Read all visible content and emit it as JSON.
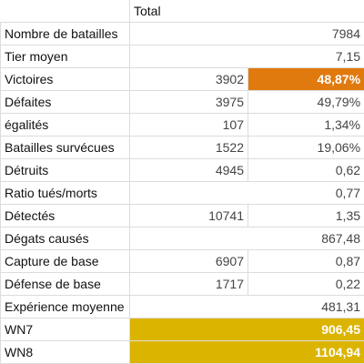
{
  "header": {
    "total_label": "Total"
  },
  "rows": [
    {
      "label": "Nombre de batailles",
      "count": "",
      "value": "7984",
      "highlight": ""
    },
    {
      "label": "Tier moyen",
      "count": "",
      "value": "7,15",
      "highlight": ""
    },
    {
      "label": "Victoires",
      "count": "3902",
      "value": "48,87%",
      "highlight": "orange",
      "highlight_color": "#e07a0e"
    },
    {
      "label": "Défaites",
      "count": "3975",
      "value": "49,79%",
      "highlight": ""
    },
    {
      "label": "égalités",
      "count": "107",
      "value": "1,34%",
      "highlight": ""
    },
    {
      "label": "Batailles survécues",
      "count": "1522",
      "value": "19,06%",
      "highlight": ""
    },
    {
      "label": "Détruits",
      "count": "4945",
      "value": "0,62",
      "highlight": ""
    },
    {
      "label": "Ratio tués/morts",
      "count": "",
      "value": "0,77",
      "highlight": ""
    },
    {
      "label": "Détectés",
      "count": "10741",
      "value": "1,35",
      "highlight": ""
    },
    {
      "label": "Dégats causés",
      "count": "",
      "value": "867,48",
      "highlight": ""
    },
    {
      "label": "Capture de base",
      "count": "6907",
      "value": "0,87",
      "highlight": ""
    },
    {
      "label": "Défense de base",
      "count": "1717",
      "value": "0,22",
      "highlight": ""
    },
    {
      "label": "Expérience moyenne",
      "count": "",
      "value": "481,31",
      "highlight": ""
    },
    {
      "label": "WN7",
      "count": "",
      "value": "906,45",
      "highlight": "gold",
      "highlight_color": "#dbb400"
    },
    {
      "label": "WN8",
      "count": "",
      "value": "1104,94",
      "highlight": "gold",
      "highlight_color": "#dbb400"
    }
  ]
}
